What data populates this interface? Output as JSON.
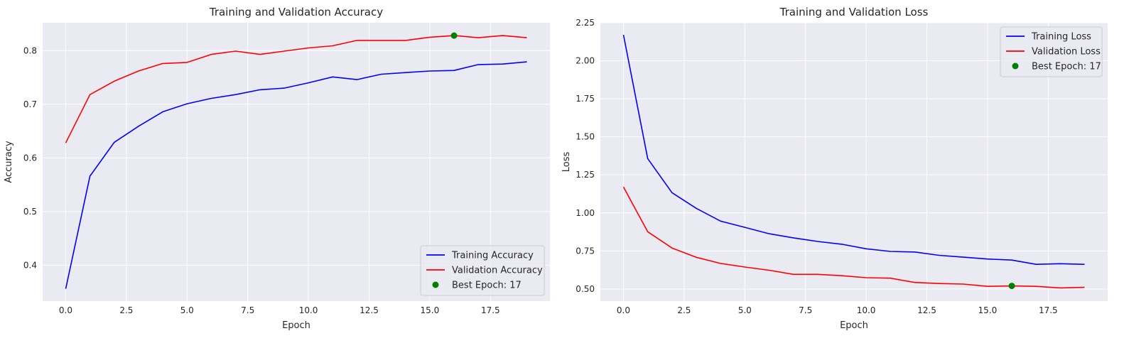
{
  "chart_data": [
    {
      "type": "line",
      "title": "Training and Validation Accuracy",
      "xlabel": "Epoch",
      "ylabel": "Accuracy",
      "xlim": [
        -0.95,
        19.95
      ],
      "ylim": [
        0.333,
        0.852
      ],
      "xticks": [
        0,
        2.5,
        5,
        7.5,
        10,
        12.5,
        15,
        17.5
      ],
      "xtick_labels": [
        "0.0",
        "2.5",
        "5.0",
        "7.5",
        "10.0",
        "12.5",
        "15.0",
        "17.5"
      ],
      "yticks": [
        0.4,
        0.5,
        0.6,
        0.7,
        0.8
      ],
      "ytick_labels": [
        "0.4",
        "0.5",
        "0.6",
        "0.7",
        "0.8"
      ],
      "grid": true,
      "legend_loc": "lower-right",
      "x": [
        0,
        1,
        2,
        3,
        4,
        5,
        6,
        7,
        8,
        9,
        10,
        11,
        12,
        13,
        14,
        15,
        16,
        17,
        18,
        19
      ],
      "series": [
        {
          "name": "Training Accuracy",
          "color": "#0000ff",
          "values": [
            0.356,
            0.566,
            0.629,
            0.659,
            0.686,
            0.701,
            0.711,
            0.718,
            0.727,
            0.73,
            0.74,
            0.751,
            0.746,
            0.756,
            0.759,
            0.762,
            0.763,
            0.774,
            0.775,
            0.779
          ]
        },
        {
          "name": "Validation Accuracy",
          "color": "#ff0000",
          "values": [
            0.628,
            0.718,
            0.743,
            0.762,
            0.776,
            0.778,
            0.793,
            0.799,
            0.793,
            0.799,
            0.805,
            0.809,
            0.819,
            0.819,
            0.819,
            0.825,
            0.828,
            0.824,
            0.828,
            0.824
          ]
        }
      ],
      "best_point": {
        "name": "Best Epoch: 17",
        "x": 16,
        "y": 0.828,
        "color": "#008000"
      }
    },
    {
      "type": "line",
      "title": "Training and Validation Loss",
      "xlabel": "Epoch",
      "ylabel": "Loss",
      "xlim": [
        -0.95,
        19.95
      ],
      "ylim": [
        0.42,
        2.25
      ],
      "xticks": [
        0,
        2.5,
        5,
        7.5,
        10,
        12.5,
        15,
        17.5
      ],
      "xtick_labels": [
        "0.0",
        "2.5",
        "5.0",
        "7.5",
        "10.0",
        "12.5",
        "15.0",
        "17.5"
      ],
      "yticks": [
        0.5,
        0.75,
        1.0,
        1.25,
        1.5,
        1.75,
        2.0,
        2.25
      ],
      "ytick_labels": [
        "0.50",
        "0.75",
        "1.00",
        "1.25",
        "1.50",
        "1.75",
        "2.00",
        "2.25"
      ],
      "grid": true,
      "legend_loc": "upper-right",
      "x": [
        0,
        1,
        2,
        3,
        4,
        5,
        6,
        7,
        8,
        9,
        10,
        11,
        12,
        13,
        14,
        15,
        16,
        17,
        18,
        19
      ],
      "series": [
        {
          "name": "Training Loss",
          "color": "#0000ff",
          "values": [
            2.17,
            1.357,
            1.133,
            1.03,
            0.946,
            0.905,
            0.863,
            0.836,
            0.812,
            0.794,
            0.764,
            0.747,
            0.743,
            0.721,
            0.709,
            0.697,
            0.69,
            0.662,
            0.666,
            0.662
          ]
        },
        {
          "name": "Validation Loss",
          "color": "#ff0000",
          "values": [
            1.17,
            0.876,
            0.769,
            0.708,
            0.668,
            0.644,
            0.623,
            0.596,
            0.596,
            0.587,
            0.574,
            0.571,
            0.543,
            0.536,
            0.532,
            0.517,
            0.52,
            0.517,
            0.507,
            0.511
          ]
        }
      ],
      "best_point": {
        "name": "Best Epoch: 17",
        "x": 16,
        "y": 0.52,
        "color": "#008000"
      }
    }
  ]
}
